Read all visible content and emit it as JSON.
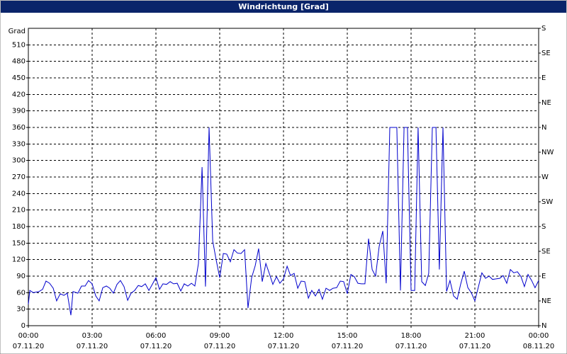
{
  "chart_data": {
    "type": "line",
    "title": "Windrichtung [Grad]",
    "ylabel": "Grad",
    "x": [
      0,
      0.07,
      0.23,
      0.5,
      0.67,
      0.83,
      1,
      1.17,
      1.33,
      1.5,
      1.67,
      1.83,
      2,
      2.1,
      2.33,
      2.5,
      2.67,
      2.83,
      3,
      3.17,
      3.33,
      3.5,
      3.67,
      3.83,
      4,
      4.17,
      4.33,
      4.5,
      4.67,
      4.83,
      5,
      5.17,
      5.33,
      5.5,
      5.67,
      5.83,
      6,
      6.17,
      6.33,
      6.5,
      6.67,
      6.83,
      7,
      7.17,
      7.33,
      7.5,
      7.67,
      7.83,
      8,
      8.17,
      8.33,
      8.5,
      8.67,
      8.83,
      9,
      9.17,
      9.33,
      9.5,
      9.67,
      9.83,
      10,
      10.17,
      10.33,
      10.5,
      10.67,
      10.83,
      11,
      11.17,
      11.33,
      11.5,
      11.67,
      11.83,
      12,
      12.17,
      12.33,
      12.5,
      12.67,
      12.83,
      13,
      13.17,
      13.33,
      13.5,
      13.67,
      13.83,
      14,
      14.17,
      14.33,
      14.5,
      14.67,
      14.83,
      15,
      15.17,
      15.33,
      15.5,
      15.67,
      15.83,
      16,
      16.17,
      16.33,
      16.5,
      16.67,
      16.83,
      17,
      17.17,
      17.33,
      17.5,
      17.67,
      17.83,
      18,
      18.17,
      18.33,
      18.5,
      18.67,
      18.83,
      19,
      19.17,
      19.33,
      19.5,
      19.67,
      19.83,
      20,
      20.17,
      20.33,
      20.5,
      20.67,
      20.83,
      21,
      21.17,
      21.33,
      21.5,
      21.67,
      21.83,
      22,
      22.17,
      22.33,
      22.5,
      22.67,
      22.83,
      23,
      23.17,
      23.33,
      23.5,
      23.67,
      23.83,
      24
    ],
    "series": [
      {
        "name": "Windrichtung",
        "color": "#0000cc",
        "values": [
          39,
          64,
          60,
          62,
          66,
          81,
          77,
          68,
          45,
          58,
          55,
          59,
          19,
          62,
          59,
          72,
          72,
          82,
          76,
          54,
          45,
          69,
          72,
          68,
          59,
          75,
          82,
          71,
          46,
          59,
          64,
          73,
          71,
          76,
          64,
          75,
          87,
          66,
          76,
          75,
          80,
          76,
          77,
          63,
          76,
          72,
          77,
          72,
          113,
          288,
          71,
          360,
          154,
          120,
          87,
          131,
          130,
          116,
          138,
          132,
          131,
          138,
          32,
          87,
          109,
          140,
          80,
          113,
          95,
          75,
          89,
          77,
          85,
          108,
          91,
          95,
          68,
          81,
          80,
          50,
          64,
          54,
          66,
          48,
          68,
          64,
          68,
          69,
          81,
          80,
          58,
          93,
          89,
          77,
          76,
          76,
          158,
          102,
          90,
          144,
          172,
          77,
          360,
          360,
          360,
          64,
          360,
          360,
          64,
          64,
          360,
          80,
          73,
          95,
          360,
          360,
          102,
          360,
          62,
          82,
          54,
          48,
          75,
          99,
          69,
          60,
          45,
          71,
          96,
          86,
          90,
          84,
          85,
          86,
          91,
          77,
          102,
          96,
          98,
          89,
          71,
          93,
          82,
          69,
          82
        ]
      }
    ],
    "xlim": [
      0,
      24
    ],
    "xticks": [
      {
        "value": 0,
        "label": "00:00",
        "date": "07.11.20"
      },
      {
        "value": 3,
        "label": "03:00",
        "date": "07.11.20"
      },
      {
        "value": 6,
        "label": "06:00",
        "date": "07.11.20"
      },
      {
        "value": 9,
        "label": "09:00",
        "date": "07.11.20"
      },
      {
        "value": 12,
        "label": "12:00",
        "date": "07.11.20"
      },
      {
        "value": 15,
        "label": "15:00",
        "date": "07.11.20"
      },
      {
        "value": 18,
        "label": "18:00",
        "date": "07.11.20"
      },
      {
        "value": 21,
        "label": "21:00",
        "date": "07.11.20"
      },
      {
        "value": 24,
        "label": "00:00",
        "date": "08.11.20"
      }
    ],
    "ylim": [
      0,
      540
    ],
    "yticks": [
      0,
      30,
      60,
      90,
      120,
      150,
      180,
      210,
      240,
      270,
      300,
      330,
      360,
      390,
      420,
      450,
      480,
      510
    ],
    "y2lim": [
      0,
      540
    ],
    "y2ticks": [
      {
        "value": 0,
        "label": "N"
      },
      {
        "value": 45,
        "label": "NE"
      },
      {
        "value": 90,
        "label": "E"
      },
      {
        "value": 135,
        "label": "SE"
      },
      {
        "value": 180,
        "label": "S"
      },
      {
        "value": 225,
        "label": "SW"
      },
      {
        "value": 270,
        "label": "W"
      },
      {
        "value": 315,
        "label": "NW"
      },
      {
        "value": 360,
        "label": "N"
      },
      {
        "value": 405,
        "label": "NE"
      },
      {
        "value": 450,
        "label": "E"
      },
      {
        "value": 495,
        "label": "SE"
      },
      {
        "value": 540,
        "label": "S"
      }
    ],
    "grid": true
  }
}
